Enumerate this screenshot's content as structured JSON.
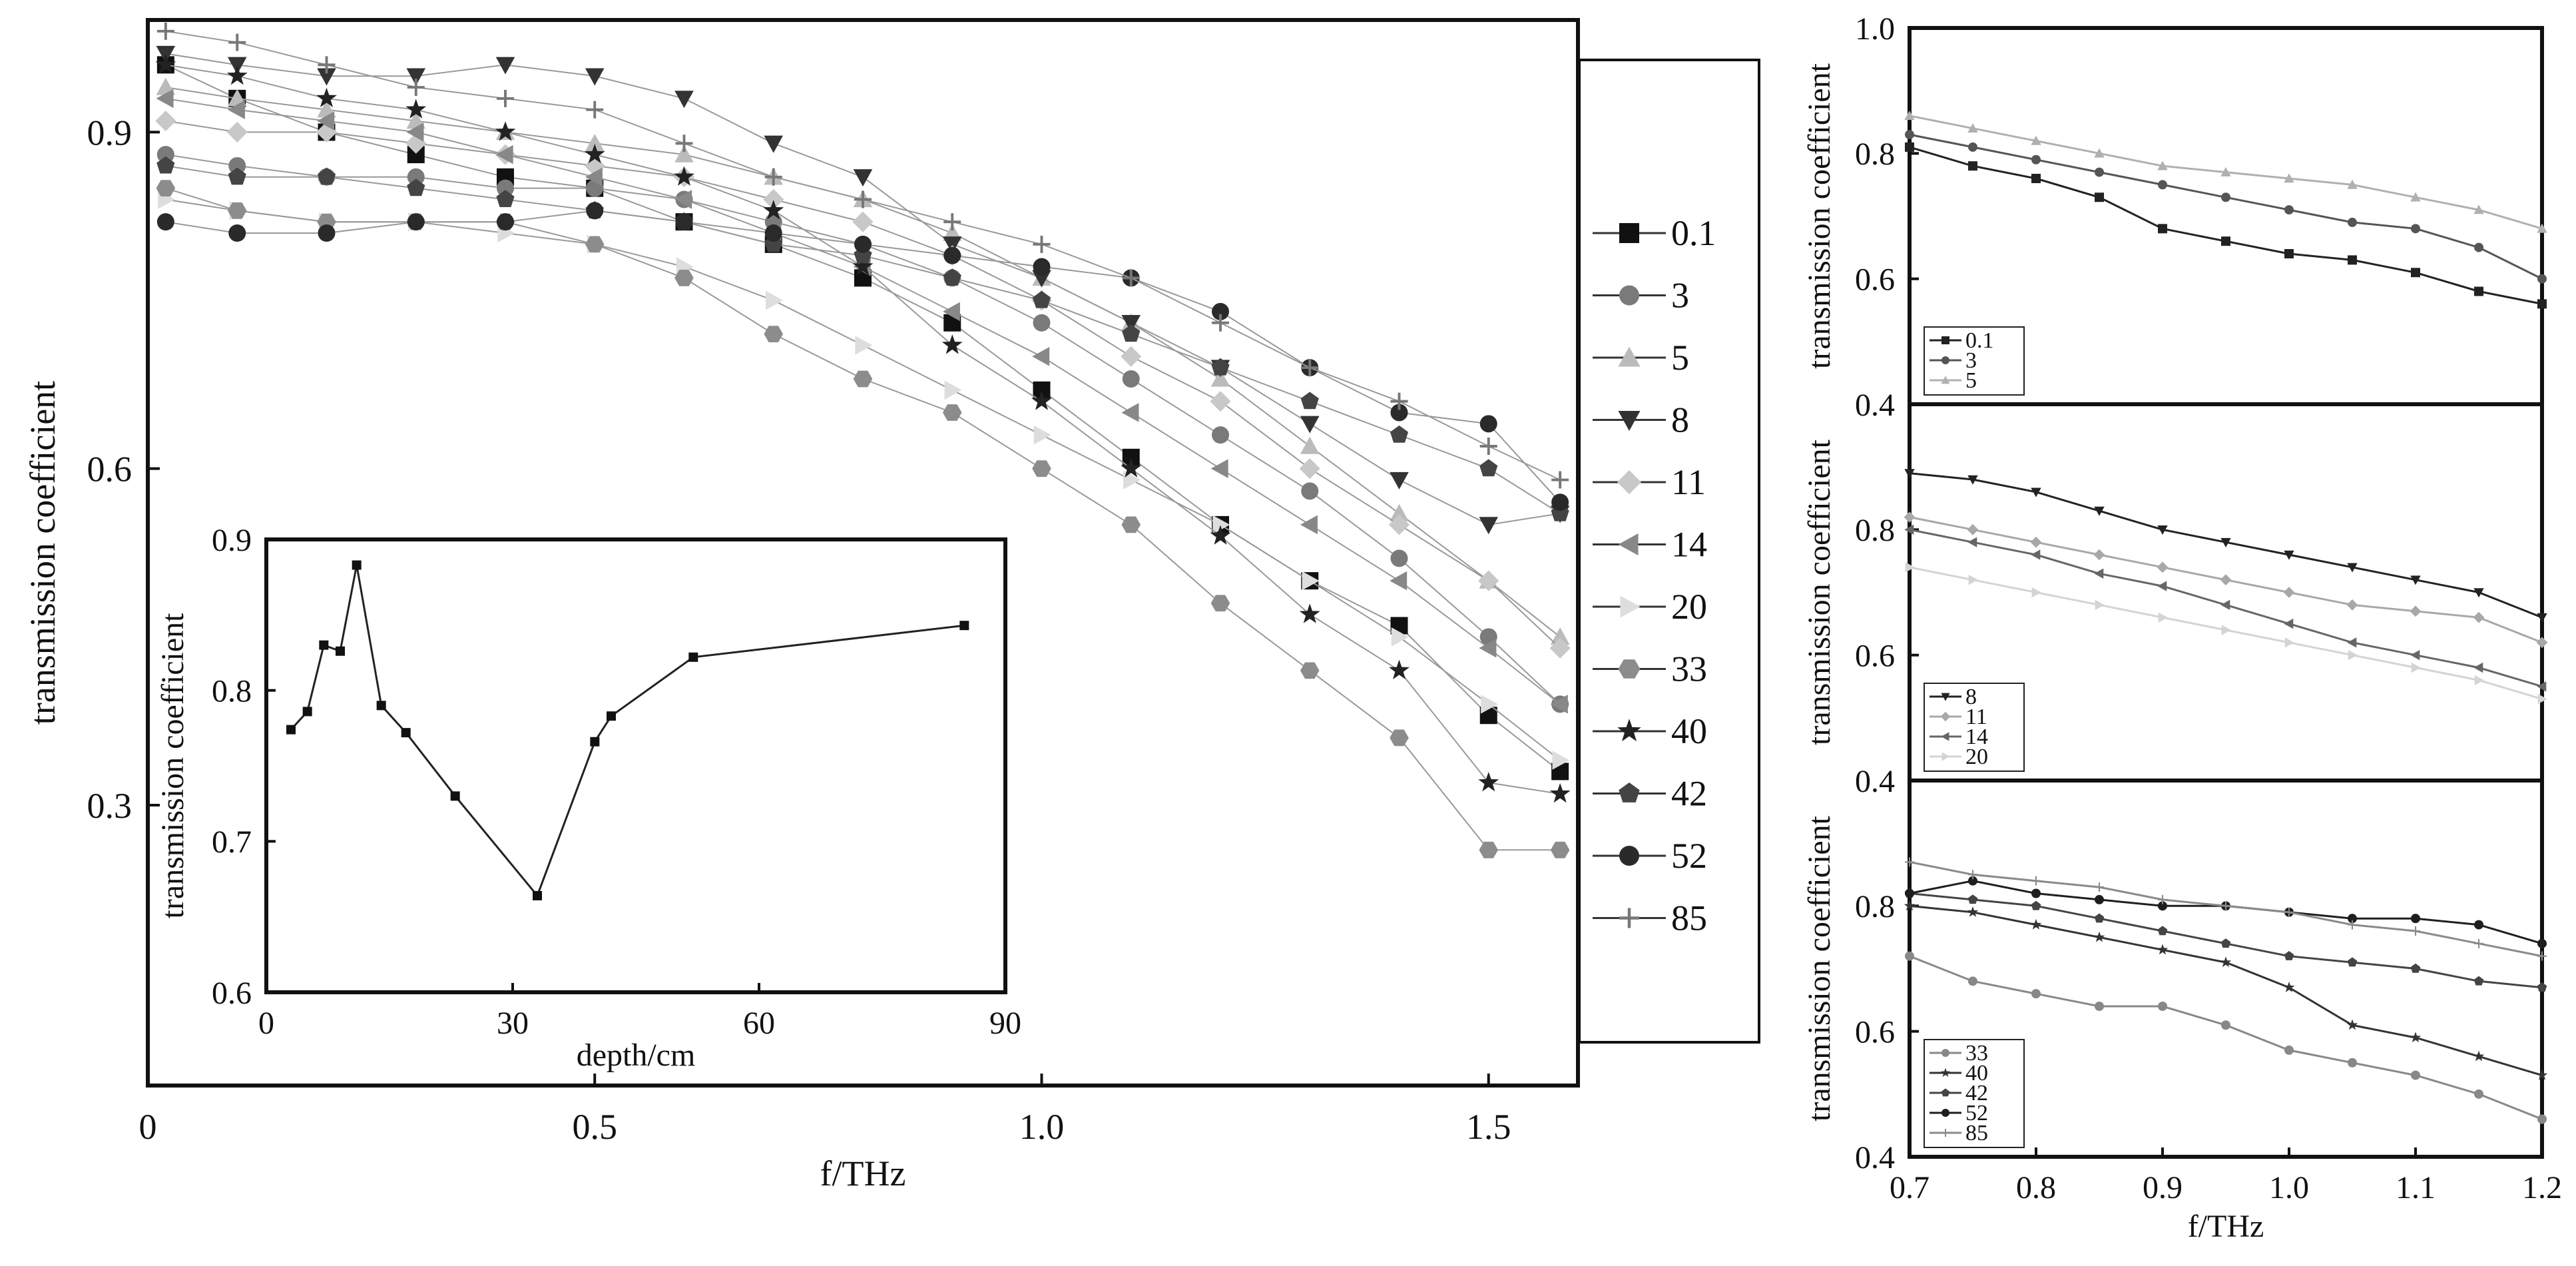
{
  "chart_data": [
    {
      "id": "main",
      "type": "scatter",
      "xlabel": "f/THz",
      "ylabel": "transmission coefficient",
      "xlim": [
        0,
        1.6
      ],
      "ylim": [
        0.05,
        1.0
      ],
      "xticks": [
        0,
        0.5,
        1.0,
        1.5
      ],
      "xtick_labels": [
        "0",
        "0.5",
        "1.0",
        "1.5"
      ],
      "yticks": [
        0.3,
        0.6,
        0.9
      ],
      "ytick_labels": [
        "0.3",
        "0.6",
        "0.9"
      ],
      "legend_position": "right, outside plot",
      "series": [
        {
          "name": "0.1",
          "marker": "square",
          "color": "#111111",
          "x": [
            0.02,
            0.1,
            0.2,
            0.3,
            0.4,
            0.5,
            0.6,
            0.7,
            0.8,
            0.9,
            1.0,
            1.1,
            1.2,
            1.3,
            1.4,
            1.5,
            1.58
          ],
          "y": [
            0.96,
            0.93,
            0.9,
            0.88,
            0.86,
            0.85,
            0.82,
            0.8,
            0.77,
            0.73,
            0.67,
            0.61,
            0.55,
            0.5,
            0.46,
            0.38,
            0.33
          ]
        },
        {
          "name": "3",
          "marker": "circle",
          "color": "#7a7a7a",
          "x": [
            0.02,
            0.1,
            0.2,
            0.3,
            0.4,
            0.5,
            0.6,
            0.7,
            0.8,
            0.9,
            1.0,
            1.1,
            1.2,
            1.3,
            1.4,
            1.5,
            1.58
          ],
          "y": [
            0.88,
            0.87,
            0.86,
            0.86,
            0.85,
            0.85,
            0.84,
            0.82,
            0.8,
            0.77,
            0.73,
            0.68,
            0.63,
            0.58,
            0.52,
            0.45,
            0.39
          ]
        },
        {
          "name": "5",
          "marker": "triangle-up",
          "color": "#bbbbbb",
          "x": [
            0.02,
            0.1,
            0.2,
            0.3,
            0.4,
            0.5,
            0.6,
            0.7,
            0.8,
            0.9,
            1.0,
            1.1,
            1.2,
            1.3,
            1.4,
            1.5,
            1.58
          ],
          "y": [
            0.94,
            0.93,
            0.92,
            0.91,
            0.9,
            0.89,
            0.88,
            0.86,
            0.84,
            0.81,
            0.77,
            0.73,
            0.68,
            0.62,
            0.56,
            0.5,
            0.45
          ]
        },
        {
          "name": "8",
          "marker": "triangle-down",
          "color": "#333333",
          "x": [
            0.02,
            0.1,
            0.2,
            0.3,
            0.4,
            0.5,
            0.6,
            0.7,
            0.8,
            0.9,
            1.0,
            1.1,
            1.2,
            1.3,
            1.4,
            1.5,
            1.58
          ],
          "y": [
            0.97,
            0.96,
            0.95,
            0.95,
            0.96,
            0.95,
            0.93,
            0.89,
            0.86,
            0.8,
            0.77,
            0.73,
            0.69,
            0.64,
            0.59,
            0.55,
            0.56
          ]
        },
        {
          "name": "11",
          "marker": "diamond",
          "color": "#c8c8c8",
          "x": [
            0.02,
            0.1,
            0.2,
            0.3,
            0.4,
            0.5,
            0.6,
            0.7,
            0.8,
            0.9,
            1.0,
            1.1,
            1.2,
            1.3,
            1.4,
            1.5,
            1.58
          ],
          "y": [
            0.91,
            0.9,
            0.9,
            0.89,
            0.88,
            0.87,
            0.86,
            0.84,
            0.82,
            0.79,
            0.75,
            0.7,
            0.66,
            0.6,
            0.55,
            0.5,
            0.44
          ]
        },
        {
          "name": "14",
          "marker": "triangle-left",
          "color": "#888888",
          "x": [
            0.02,
            0.1,
            0.2,
            0.3,
            0.4,
            0.5,
            0.6,
            0.7,
            0.8,
            0.9,
            1.0,
            1.1,
            1.2,
            1.3,
            1.4,
            1.5,
            1.58
          ],
          "y": [
            0.93,
            0.92,
            0.91,
            0.9,
            0.88,
            0.86,
            0.84,
            0.81,
            0.78,
            0.74,
            0.7,
            0.65,
            0.6,
            0.55,
            0.5,
            0.44,
            0.39
          ]
        },
        {
          "name": "20",
          "marker": "triangle-right",
          "color": "#dddddd",
          "x": [
            0.02,
            0.1,
            0.2,
            0.3,
            0.4,
            0.5,
            0.6,
            0.7,
            0.8,
            0.9,
            1.0,
            1.1,
            1.2,
            1.3,
            1.4,
            1.5,
            1.58
          ],
          "y": [
            0.84,
            0.83,
            0.82,
            0.82,
            0.81,
            0.8,
            0.78,
            0.75,
            0.71,
            0.67,
            0.63,
            0.59,
            0.55,
            0.5,
            0.45,
            0.39,
            0.34
          ]
        },
        {
          "name": "33",
          "marker": "hexagon",
          "color": "#8c8c8c",
          "x": [
            0.02,
            0.1,
            0.2,
            0.3,
            0.4,
            0.5,
            0.6,
            0.7,
            0.8,
            0.9,
            1.0,
            1.1,
            1.2,
            1.3,
            1.4,
            1.5,
            1.58
          ],
          "y": [
            0.85,
            0.83,
            0.82,
            0.82,
            0.82,
            0.8,
            0.77,
            0.72,
            0.68,
            0.65,
            0.6,
            0.55,
            0.48,
            0.42,
            0.36,
            0.26,
            0.26
          ]
        },
        {
          "name": "40",
          "marker": "star",
          "color": "#222222",
          "x": [
            0.02,
            0.1,
            0.2,
            0.3,
            0.4,
            0.5,
            0.6,
            0.7,
            0.8,
            0.9,
            1.0,
            1.1,
            1.2,
            1.3,
            1.4,
            1.5,
            1.58
          ],
          "y": [
            0.96,
            0.95,
            0.93,
            0.92,
            0.9,
            0.88,
            0.86,
            0.83,
            0.78,
            0.71,
            0.66,
            0.6,
            0.54,
            0.47,
            0.42,
            0.32,
            0.31
          ]
        },
        {
          "name": "42",
          "marker": "pentagon",
          "color": "#444444",
          "x": [
            0.02,
            0.1,
            0.2,
            0.3,
            0.4,
            0.5,
            0.6,
            0.7,
            0.8,
            0.9,
            1.0,
            1.1,
            1.2,
            1.3,
            1.4,
            1.5,
            1.58
          ],
          "y": [
            0.87,
            0.86,
            0.86,
            0.85,
            0.84,
            0.83,
            0.82,
            0.8,
            0.79,
            0.77,
            0.75,
            0.72,
            0.69,
            0.66,
            0.63,
            0.6,
            0.56
          ]
        },
        {
          "name": "52",
          "marker": "sphere",
          "color": "#2a2a2a",
          "x": [
            0.02,
            0.1,
            0.2,
            0.3,
            0.4,
            0.5,
            0.6,
            0.7,
            0.8,
            0.9,
            1.0,
            1.1,
            1.2,
            1.3,
            1.4,
            1.5,
            1.58
          ],
          "y": [
            0.82,
            0.81,
            0.81,
            0.82,
            0.82,
            0.83,
            0.82,
            0.81,
            0.8,
            0.79,
            0.78,
            0.77,
            0.74,
            0.69,
            0.65,
            0.64,
            0.57
          ]
        },
        {
          "name": "85",
          "marker": "plus",
          "color": "#777777",
          "x": [
            0.02,
            0.1,
            0.2,
            0.3,
            0.4,
            0.5,
            0.6,
            0.7,
            0.8,
            0.9,
            1.0,
            1.1,
            1.2,
            1.3,
            1.4,
            1.5,
            1.58
          ],
          "y": [
            0.99,
            0.98,
            0.96,
            0.94,
            0.93,
            0.92,
            0.89,
            0.86,
            0.84,
            0.82,
            0.8,
            0.77,
            0.73,
            0.69,
            0.66,
            0.62,
            0.59
          ]
        }
      ]
    },
    {
      "id": "inset",
      "type": "line",
      "xlabel": "depth/cm",
      "ylabel": "transmission coefficient",
      "xlim": [
        0,
        90
      ],
      "ylim": [
        0.6,
        0.9
      ],
      "xticks": [
        0,
        30,
        60,
        90
      ],
      "xtick_labels": [
        "0",
        "30",
        "60",
        "90"
      ],
      "yticks": [
        0.6,
        0.7,
        0.8,
        0.9
      ],
      "ytick_labels": [
        "0.6",
        "0.7",
        "0.8",
        "0.9"
      ],
      "series": [
        {
          "x": [
            3,
            5,
            7,
            9,
            11,
            14,
            17,
            23,
            33,
            40,
            42,
            52,
            85
          ],
          "y": [
            0.774,
            0.786,
            0.83,
            0.826,
            0.883,
            0.79,
            0.772,
            0.73,
            0.664,
            0.766,
            0.783,
            0.822,
            0.843
          ]
        }
      ]
    },
    {
      "id": "right-top",
      "type": "line",
      "ylabel": "transmission coefficient",
      "xlim": [
        0.7,
        1.2
      ],
      "ylim": [
        0.4,
        1.0
      ],
      "yticks": [
        0.4,
        0.6,
        0.8,
        1.0
      ],
      "ytick_labels": [
        "0.4",
        "0.6",
        "0.8",
        "1.0"
      ],
      "legend_position": "bottom-left",
      "series": [
        {
          "name": "0.1",
          "marker": "square",
          "color": "#222222",
          "x": [
            0.7,
            0.75,
            0.8,
            0.85,
            0.9,
            0.95,
            1.0,
            1.05,
            1.1,
            1.15,
            1.2
          ],
          "y": [
            0.81,
            0.78,
            0.76,
            0.73,
            0.68,
            0.66,
            0.64,
            0.63,
            0.61,
            0.58,
            0.56
          ]
        },
        {
          "name": "3",
          "marker": "circle",
          "color": "#555555",
          "x": [
            0.7,
            0.75,
            0.8,
            0.85,
            0.9,
            0.95,
            1.0,
            1.05,
            1.1,
            1.15,
            1.2
          ],
          "y": [
            0.83,
            0.81,
            0.79,
            0.77,
            0.75,
            0.73,
            0.71,
            0.69,
            0.68,
            0.65,
            0.6
          ]
        },
        {
          "name": "5",
          "marker": "triangle-up",
          "color": "#b0b0b0",
          "x": [
            0.7,
            0.75,
            0.8,
            0.85,
            0.9,
            0.95,
            1.0,
            1.05,
            1.1,
            1.15,
            1.2
          ],
          "y": [
            0.86,
            0.84,
            0.82,
            0.8,
            0.78,
            0.77,
            0.76,
            0.75,
            0.73,
            0.71,
            0.68
          ]
        }
      ]
    },
    {
      "id": "right-middle",
      "type": "line",
      "ylabel": "transmission coefficient",
      "xlim": [
        0.7,
        1.2
      ],
      "ylim": [
        0.4,
        1.0
      ],
      "yticks": [
        0.4,
        0.6,
        0.8
      ],
      "ytick_labels": [
        "0.4",
        "0.6",
        "0.8"
      ],
      "legend_position": "bottom-left",
      "series": [
        {
          "name": "8",
          "marker": "triangle-down",
          "color": "#222222",
          "x": [
            0.7,
            0.75,
            0.8,
            0.85,
            0.9,
            0.95,
            1.0,
            1.05,
            1.1,
            1.15,
            1.2
          ],
          "y": [
            0.89,
            0.88,
            0.86,
            0.83,
            0.8,
            0.78,
            0.76,
            0.74,
            0.72,
            0.7,
            0.66
          ]
        },
        {
          "name": "11",
          "marker": "diamond",
          "color": "#a8a8a8",
          "x": [
            0.7,
            0.75,
            0.8,
            0.85,
            0.9,
            0.95,
            1.0,
            1.05,
            1.1,
            1.15,
            1.2
          ],
          "y": [
            0.82,
            0.8,
            0.78,
            0.76,
            0.74,
            0.72,
            0.7,
            0.68,
            0.67,
            0.66,
            0.62
          ]
        },
        {
          "name": "14",
          "marker": "triangle-left",
          "color": "#666666",
          "x": [
            0.7,
            0.75,
            0.8,
            0.85,
            0.9,
            0.95,
            1.0,
            1.05,
            1.1,
            1.15,
            1.2
          ],
          "y": [
            0.8,
            0.78,
            0.76,
            0.73,
            0.71,
            0.68,
            0.65,
            0.62,
            0.6,
            0.58,
            0.55
          ]
        },
        {
          "name": "20",
          "marker": "triangle-right",
          "color": "#d4d4d4",
          "x": [
            0.7,
            0.75,
            0.8,
            0.85,
            0.9,
            0.95,
            1.0,
            1.05,
            1.1,
            1.15,
            1.2
          ],
          "y": [
            0.74,
            0.72,
            0.7,
            0.68,
            0.66,
            0.64,
            0.62,
            0.6,
            0.58,
            0.56,
            0.53
          ]
        }
      ]
    },
    {
      "id": "right-bottom",
      "type": "line",
      "xlabel": "f/THz",
      "ylabel": "transmission coefficient",
      "xlim": [
        0.7,
        1.2
      ],
      "ylim": [
        0.4,
        1.0
      ],
      "xticks": [
        0.7,
        0.8,
        0.9,
        1.0,
        1.1,
        1.2
      ],
      "xtick_labels": [
        "0.7",
        "0.8",
        "0.9",
        "1.0",
        "1.1",
        "1.2"
      ],
      "yticks": [
        0.4,
        0.6,
        0.8
      ],
      "ytick_labels": [
        "0.4",
        "0.6",
        "0.8"
      ],
      "legend_position": "bottom-left",
      "series": [
        {
          "name": "33",
          "marker": "circle",
          "color": "#888888",
          "x": [
            0.7,
            0.75,
            0.8,
            0.85,
            0.9,
            0.95,
            1.0,
            1.05,
            1.1,
            1.15,
            1.2
          ],
          "y": [
            0.72,
            0.68,
            0.66,
            0.64,
            0.64,
            0.61,
            0.57,
            0.55,
            0.53,
            0.5,
            0.46
          ]
        },
        {
          "name": "40",
          "marker": "star",
          "color": "#333333",
          "x": [
            0.7,
            0.75,
            0.8,
            0.85,
            0.9,
            0.95,
            1.0,
            1.05,
            1.1,
            1.15,
            1.2
          ],
          "y": [
            0.8,
            0.79,
            0.77,
            0.75,
            0.73,
            0.71,
            0.67,
            0.61,
            0.59,
            0.56,
            0.53
          ]
        },
        {
          "name": "42",
          "marker": "pentagon",
          "color": "#444444",
          "x": [
            0.7,
            0.75,
            0.8,
            0.85,
            0.9,
            0.95,
            1.0,
            1.05,
            1.1,
            1.15,
            1.2
          ],
          "y": [
            0.82,
            0.81,
            0.8,
            0.78,
            0.76,
            0.74,
            0.72,
            0.71,
            0.7,
            0.68,
            0.67
          ]
        },
        {
          "name": "52",
          "marker": "sphere",
          "color": "#1e1e1e",
          "x": [
            0.7,
            0.75,
            0.8,
            0.85,
            0.9,
            0.95,
            1.0,
            1.05,
            1.1,
            1.15,
            1.2
          ],
          "y": [
            0.82,
            0.84,
            0.82,
            0.81,
            0.8,
            0.8,
            0.79,
            0.78,
            0.78,
            0.77,
            0.74
          ]
        },
        {
          "name": "85",
          "marker": "plus",
          "color": "#8a8a8a",
          "x": [
            0.7,
            0.75,
            0.8,
            0.85,
            0.9,
            0.95,
            1.0,
            1.05,
            1.1,
            1.15,
            1.2
          ],
          "y": [
            0.87,
            0.85,
            0.84,
            0.83,
            0.81,
            0.8,
            0.79,
            0.77,
            0.76,
            0.74,
            0.72
          ]
        }
      ]
    }
  ]
}
